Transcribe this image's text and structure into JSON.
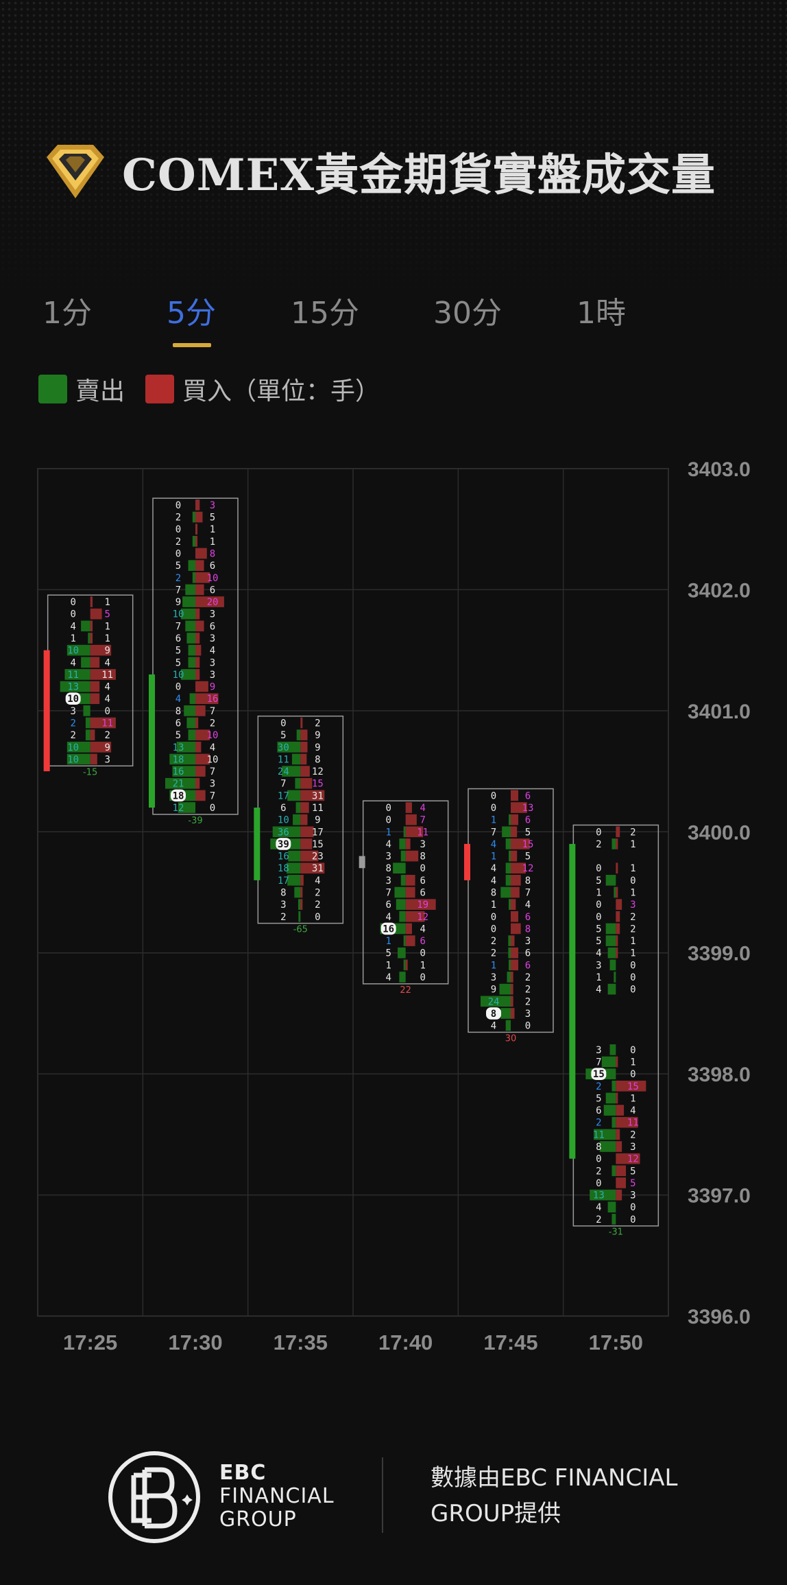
{
  "header": {
    "title": "COMEX黃金期貨實盤成交量"
  },
  "tabs": [
    {
      "label": "1分",
      "active": false
    },
    {
      "label": "5分",
      "active": true
    },
    {
      "label": "15分",
      "active": false
    },
    {
      "label": "30分",
      "active": false
    },
    {
      "label": "1時",
      "active": false
    }
  ],
  "legend": {
    "sell_label": "賣出",
    "buy_label": "買入（單位：手）",
    "sell_color": "#1f7a1f",
    "buy_color": "#b32c2c"
  },
  "colors": {
    "sell_bar": "#1a6e1a",
    "buy_bar": "#8c2a2a",
    "up_candle": "#2aa52a",
    "down_candle": "#f03a3a",
    "teal": "#2ab0b0",
    "blue": "#2f8ef0",
    "magenta": "#e040e0",
    "grid": "#2c2c2c"
  },
  "chart_data": {
    "type": "footprint",
    "price_axis": {
      "min": 3396.0,
      "max": 3403.0,
      "ticks": [
        "3403.0",
        "3402.0",
        "3401.0",
        "3400.0",
        "3399.0",
        "3398.0",
        "3397.0",
        "3396.0"
      ]
    },
    "tick_size": 0.1,
    "time_axis": [
      "17:25",
      "17:30",
      "17:35",
      "17:40",
      "17:45",
      "17:50"
    ],
    "bars": [
      {
        "time": "17:25",
        "top": 3401.9,
        "candle": {
          "high": 3401.5,
          "low": 3400.5,
          "dir": "down"
        },
        "delta": "-15",
        "poc": 3401.1,
        "rows": [
          [
            "0",
            "1"
          ],
          [
            "0",
            "5"
          ],
          [
            "4",
            "1"
          ],
          [
            "1",
            "1"
          ],
          [
            "10",
            "9"
          ],
          [
            "4",
            "4"
          ],
          [
            "11",
            "11"
          ],
          [
            "13",
            "4"
          ],
          [
            "10",
            "4"
          ],
          [
            "3",
            "0"
          ],
          [
            "2",
            "11"
          ],
          [
            "2",
            "2"
          ],
          [
            "10",
            "9"
          ],
          [
            "10",
            "3"
          ]
        ]
      },
      {
        "time": "17:30",
        "top": 3402.7,
        "candle": {
          "high": 3401.3,
          "low": 3400.2,
          "dir": "up"
        },
        "delta": "-39",
        "poc": 3400.3,
        "rows": [
          [
            "0",
            "3"
          ],
          [
            "2",
            "5"
          ],
          [
            "0",
            "1"
          ],
          [
            "2",
            "1"
          ],
          [
            "0",
            "8"
          ],
          [
            "5",
            "6"
          ],
          [
            "2",
            "10"
          ],
          [
            "7",
            "6"
          ],
          [
            "9",
            "20"
          ],
          [
            "10",
            "3"
          ],
          [
            "7",
            "6"
          ],
          [
            "6",
            "3"
          ],
          [
            "5",
            "4"
          ],
          [
            "5",
            "3"
          ],
          [
            "10",
            "3"
          ],
          [
            "0",
            "9"
          ],
          [
            "4",
            "16"
          ],
          [
            "8",
            "7"
          ],
          [
            "6",
            "2"
          ],
          [
            "5",
            "10"
          ],
          [
            "13",
            "4"
          ],
          [
            "18",
            "10"
          ],
          [
            "16",
            "7"
          ],
          [
            "21",
            "3"
          ],
          [
            "18",
            "7"
          ],
          [
            "12",
            "0"
          ]
        ]
      },
      {
        "time": "17:35",
        "top": 3400.9,
        "candle": {
          "high": 3400.2,
          "low": 3399.6,
          "dir": "up"
        },
        "delta": "-65",
        "poc": 3399.9,
        "rows": [
          [
            "0",
            "2"
          ],
          [
            "5",
            "9"
          ],
          [
            "30",
            "9"
          ],
          [
            "11",
            "8"
          ],
          [
            "24",
            "12"
          ],
          [
            "7",
            "15"
          ],
          [
            "17",
            "31"
          ],
          [
            "6",
            "11"
          ],
          [
            "10",
            "9"
          ],
          [
            "36",
            "17"
          ],
          [
            "39",
            "15"
          ],
          [
            "16",
            "23"
          ],
          [
            "18",
            "31"
          ],
          [
            "17",
            "4"
          ],
          [
            "8",
            "2"
          ],
          [
            "3",
            "2"
          ],
          [
            "2",
            "0"
          ]
        ]
      },
      {
        "time": "17:40",
        "top": 3400.2,
        "candle": {
          "high": 3399.8,
          "low": 3399.7,
          "dir": "flat"
        },
        "delta": "22",
        "poc": 3399.2,
        "rows": [
          [
            "0",
            "4"
          ],
          [
            "0",
            "7"
          ],
          [
            "1",
            "11"
          ],
          [
            "4",
            "3"
          ],
          [
            "3",
            "8"
          ],
          [
            "8",
            "0"
          ],
          [
            "3",
            "6"
          ],
          [
            "7",
            "6"
          ],
          [
            "6",
            "19"
          ],
          [
            "4",
            "12"
          ],
          [
            "16",
            "4"
          ],
          [
            "1",
            "6"
          ],
          [
            "5",
            "0"
          ],
          [
            "1",
            "1"
          ],
          [
            "4",
            "0"
          ]
        ]
      },
      {
        "time": "17:45",
        "top": 3400.3,
        "candle": {
          "high": 3399.9,
          "low": 3399.6,
          "dir": "down"
        },
        "delta": "30",
        "poc": 3398.5,
        "rows": [
          [
            "0",
            "6"
          ],
          [
            "0",
            "13"
          ],
          [
            "1",
            "6"
          ],
          [
            "7",
            "5"
          ],
          [
            "4",
            "15"
          ],
          [
            "1",
            "5"
          ],
          [
            "4",
            "12"
          ],
          [
            "4",
            "8"
          ],
          [
            "8",
            "7"
          ],
          [
            "1",
            "4"
          ],
          [
            "0",
            "6"
          ],
          [
            "0",
            "8"
          ],
          [
            "2",
            "3"
          ],
          [
            "2",
            "6"
          ],
          [
            "1",
            "6"
          ],
          [
            "3",
            "2"
          ],
          [
            "9",
            "2"
          ],
          [
            "24",
            "2"
          ],
          [
            "8",
            "3"
          ],
          [
            "4",
            "0"
          ]
        ]
      },
      {
        "time": "17:50",
        "top": 3400.0,
        "candle": {
          "high": 3399.9,
          "low": 3397.3,
          "dir": "up"
        },
        "delta": "-31",
        "poc": 3398.0,
        "rows": [
          [
            "0",
            "2"
          ],
          [
            "2",
            "1"
          ],
          null,
          [
            "0",
            "1"
          ],
          [
            "5",
            "0"
          ],
          [
            "1",
            "1"
          ],
          [
            "0",
            "3"
          ],
          [
            "0",
            "2"
          ],
          [
            "5",
            "2"
          ],
          [
            "5",
            "1"
          ],
          [
            "4",
            "1"
          ],
          [
            "3",
            "0"
          ],
          [
            "1",
            "0"
          ],
          [
            "4",
            "0"
          ],
          null,
          null,
          null,
          null,
          [
            "3",
            "0"
          ],
          [
            "7",
            "1"
          ],
          [
            "15",
            "0"
          ],
          [
            "2",
            "15"
          ],
          [
            "5",
            "1"
          ],
          [
            "6",
            "4"
          ],
          [
            "2",
            "11"
          ],
          [
            "11",
            "2"
          ],
          [
            "8",
            "3"
          ],
          [
            "0",
            "12"
          ],
          [
            "2",
            "5"
          ],
          [
            "0",
            "5"
          ],
          [
            "13",
            "3"
          ],
          [
            "4",
            "0"
          ],
          [
            "2",
            "0"
          ]
        ]
      }
    ]
  },
  "footer": {
    "brand_line1": "EBC",
    "brand_line2": "FINANCIAL",
    "brand_line3": "GROUP",
    "provided_line1": "數據由EBC FINANCIAL",
    "provided_line2": "GROUP提供"
  }
}
